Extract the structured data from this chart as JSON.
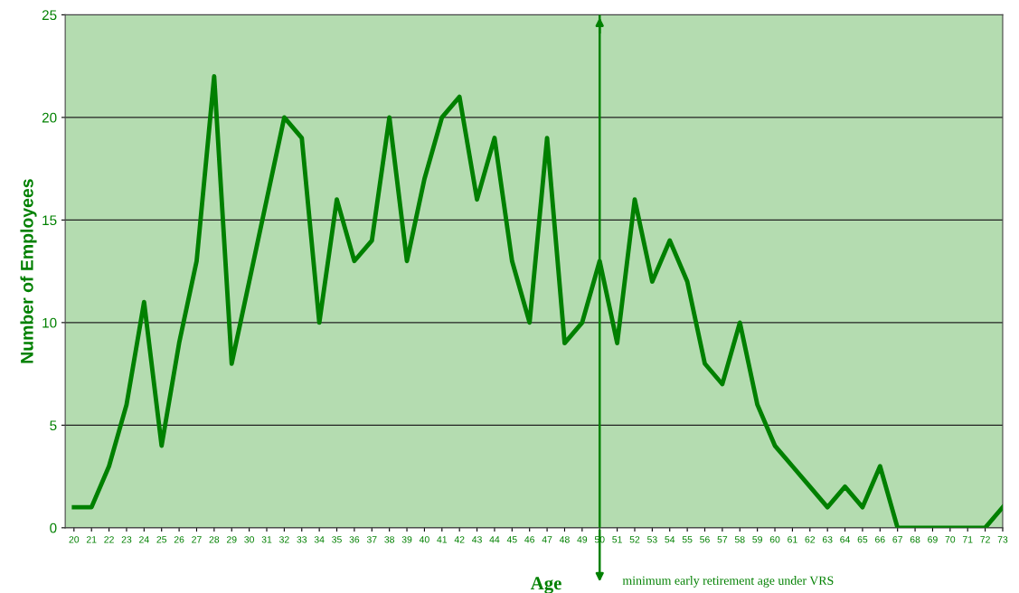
{
  "chart_data": {
    "type": "line",
    "xlabel": "Age",
    "ylabel": "Number of Employees",
    "x": [
      20,
      21,
      22,
      23,
      24,
      25,
      26,
      27,
      28,
      29,
      30,
      31,
      32,
      33,
      34,
      35,
      36,
      37,
      38,
      39,
      40,
      41,
      42,
      43,
      44,
      45,
      46,
      47,
      48,
      49,
      50,
      51,
      52,
      53,
      54,
      55,
      56,
      57,
      58,
      59,
      60,
      61,
      62,
      63,
      64,
      65,
      66,
      67,
      68,
      69,
      70,
      71,
      72,
      73
    ],
    "series": [
      {
        "color": "#008000",
        "values": [
          1,
          1,
          3,
          6,
          11,
          4,
          9,
          13,
          22,
          8,
          12,
          16,
          20,
          19,
          10,
          16,
          13,
          14,
          20,
          13,
          17,
          20,
          21,
          16,
          19,
          13,
          10,
          19,
          9,
          10,
          13,
          9,
          16,
          12,
          14,
          12,
          8,
          7,
          10,
          6,
          4,
          3,
          2,
          1,
          2,
          1,
          3,
          0,
          0,
          0,
          0,
          0,
          0,
          1
        ]
      }
    ],
    "xlim": [
      19.5,
      73
    ],
    "xticks": [
      20,
      21,
      22,
      23,
      24,
      25,
      26,
      27,
      28,
      29,
      30,
      31,
      32,
      33,
      34,
      35,
      36,
      37,
      38,
      39,
      40,
      41,
      42,
      43,
      44,
      45,
      46,
      47,
      48,
      49,
      50,
      51,
      52,
      53,
      54,
      55,
      56,
      57,
      58,
      59,
      60,
      61,
      62,
      63,
      64,
      65,
      66,
      67,
      68,
      69,
      70,
      71,
      72,
      73
    ],
    "ylim": [
      0,
      25
    ],
    "yticks": [
      0,
      5,
      10,
      15,
      20,
      25
    ],
    "grid": "y",
    "marker": "none",
    "line_style": "solid",
    "ref_lines": [
      {
        "axis": "x",
        "value": 50,
        "label": "minimum early retirement age under VRS",
        "color": "#008000"
      }
    ]
  }
}
